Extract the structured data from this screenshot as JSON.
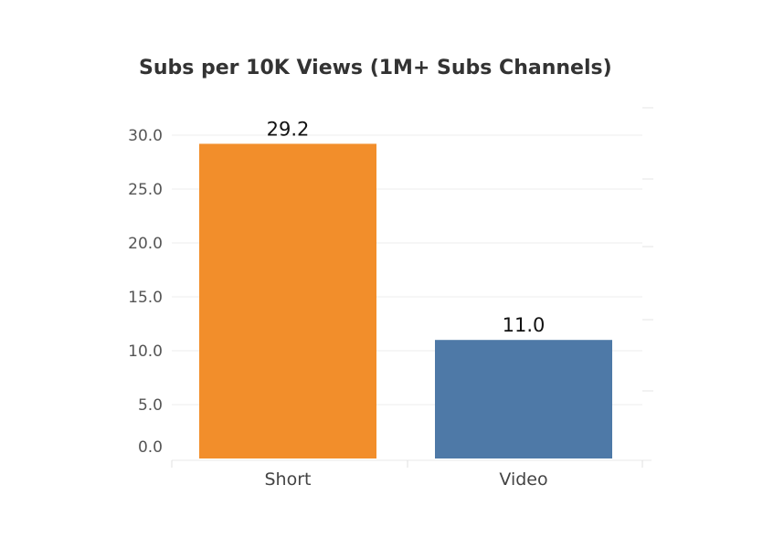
{
  "chart_data": {
    "type": "bar",
    "title": "Subs per 10K Views (1M+ Subs Channels)",
    "xlabel": "",
    "ylabel": "",
    "categories": [
      "Short",
      "Video"
    ],
    "values": [
      29.2,
      11.0
    ],
    "data_labels": [
      "29.2",
      "11.0"
    ],
    "ylim": [
      0,
      30
    ],
    "yticks": [
      0,
      5,
      10,
      15,
      20,
      25,
      30
    ],
    "ytick_labels": [
      "0.0",
      "5.0",
      "10.0",
      "15.0",
      "20.0",
      "25.0",
      "30.0"
    ],
    "colors": [
      "#F28E2B",
      "#4E79A7"
    ],
    "grid": true,
    "legend": "none"
  }
}
